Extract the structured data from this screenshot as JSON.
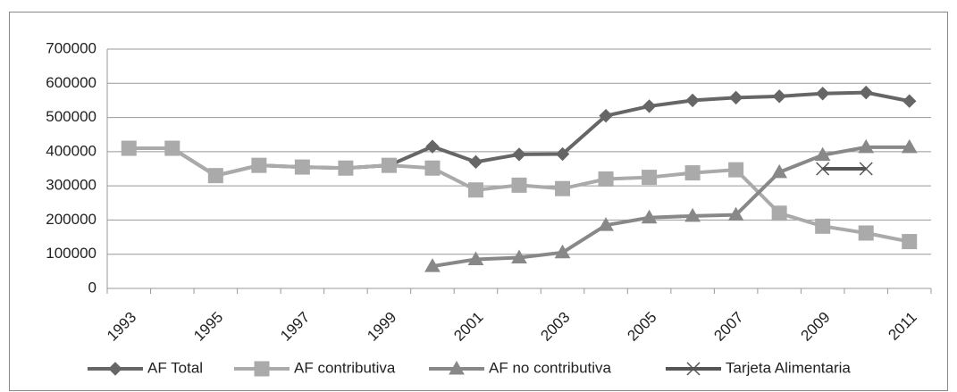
{
  "chart_data": {
    "type": "line",
    "categories": [
      "1993",
      null,
      "1995",
      null,
      "1997",
      null,
      "1999",
      null,
      "2001",
      null,
      "2003",
      null,
      "2005",
      null,
      "2007",
      null,
      "2009",
      null,
      "2011"
    ],
    "series": [
      {
        "name": "AF Total",
        "color": "#666666",
        "marker": "diamond",
        "values": [
          410000,
          410000,
          330000,
          360000,
          355000,
          352000,
          360000,
          415000,
          370000,
          392000,
          393000,
          505000,
          533000,
          550000,
          558000,
          562000,
          570000,
          573000,
          548000
        ]
      },
      {
        "name": "AF contributiva",
        "color": "#aaaaaa",
        "marker": "square",
        "values": [
          410000,
          410000,
          330000,
          360000,
          355000,
          352000,
          360000,
          352000,
          288000,
          302000,
          292000,
          320000,
          325000,
          338000,
          347000,
          220000,
          182000,
          162000,
          137000
        ]
      },
      {
        "name": "AF no contributiva",
        "color": "#888888",
        "marker": "triangle",
        "values": [
          null,
          null,
          null,
          null,
          null,
          null,
          null,
          65000,
          85000,
          90000,
          105000,
          185000,
          207000,
          212000,
          215000,
          340000,
          390000,
          413000,
          413000
        ]
      },
      {
        "name": "Tarjeta Alimentaria",
        "color": "#555555",
        "marker": "x",
        "values": [
          null,
          null,
          null,
          null,
          null,
          null,
          null,
          null,
          null,
          null,
          null,
          null,
          null,
          null,
          null,
          null,
          350000,
          350000,
          null
        ]
      }
    ],
    "ylim": [
      0,
      700000
    ],
    "yticks": [
      0,
      100000,
      200000,
      300000,
      400000,
      500000,
      600000,
      700000
    ],
    "grid": true,
    "legend": "bottom"
  }
}
